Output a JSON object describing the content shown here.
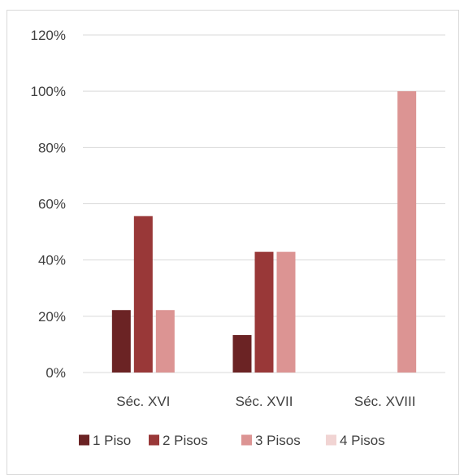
{
  "chart_data": {
    "type": "bar",
    "categories": [
      "Séc. XVI",
      "Séc. XVII",
      "Séc. XVIII"
    ],
    "series": [
      {
        "name": "1 Piso",
        "values": [
          22.2,
          13.3,
          0
        ],
        "color": "#6b2324"
      },
      {
        "name": "2 Pisos",
        "values": [
          55.6,
          42.9,
          0
        ],
        "color": "#993838"
      },
      {
        "name": "3 Pisos",
        "values": [
          22.2,
          42.9,
          100
        ],
        "color": "#dc9493"
      },
      {
        "name": "4 Pisos",
        "values": [
          0,
          0,
          0
        ],
        "color": "#f1d4d3"
      }
    ],
    "yticks": [
      "0%",
      "20%",
      "40%",
      "60%",
      "80%",
      "100%",
      "120%"
    ],
    "ylim": [
      0,
      120
    ],
    "grid": true,
    "legend": "bottom",
    "title": "",
    "xlabel": "",
    "ylabel": ""
  }
}
